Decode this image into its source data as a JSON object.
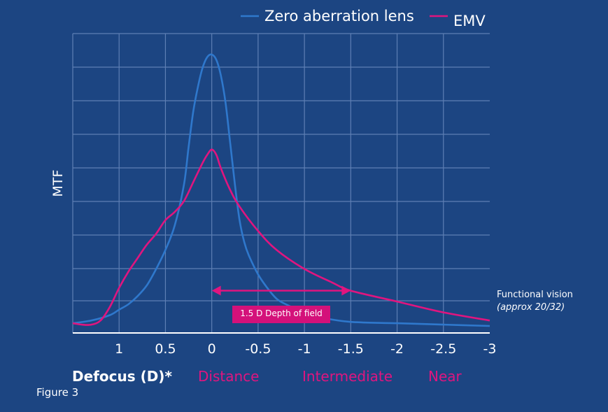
{
  "chart_data": {
    "type": "line",
    "title": "",
    "xlabel": "Defocus (D)*",
    "ylabel": "MTF",
    "xlim": [
      1.5,
      -3
    ],
    "ylim": [
      0,
      1
    ],
    "x_ticks": [
      1,
      0.5,
      0,
      -0.5,
      -1,
      -1.5,
      -2,
      -2.5,
      -3
    ],
    "x_tick_labels": [
      "1",
      "0.5",
      "0",
      "-0.5",
      "-1",
      "-1.5",
      "-2",
      "-2.5",
      "-3"
    ],
    "grid": true,
    "legend_position": "top-right",
    "series": [
      {
        "name": "Zero aberration lens",
        "color": "#2f78cc",
        "x": [
          1.5,
          1.3,
          1.1,
          1.0,
          0.9,
          0.8,
          0.7,
          0.6,
          0.5,
          0.4,
          0.3,
          0.25,
          0.2,
          0.15,
          0.1,
          0.05,
          0,
          -0.05,
          -0.1,
          -0.15,
          -0.2,
          -0.25,
          -0.3,
          -0.35,
          -0.4,
          -0.5,
          -0.6,
          -0.7,
          -0.8,
          -1.0,
          -1.2,
          -1.5,
          -2.0,
          -2.5,
          -3.0
        ],
        "y": [
          0.01,
          0.02,
          0.04,
          0.06,
          0.08,
          0.11,
          0.15,
          0.21,
          0.28,
          0.37,
          0.52,
          0.66,
          0.79,
          0.88,
          0.95,
          0.99,
          1.0,
          0.98,
          0.92,
          0.82,
          0.67,
          0.52,
          0.39,
          0.31,
          0.26,
          0.19,
          0.14,
          0.1,
          0.08,
          0.05,
          0.03,
          0.015,
          0.01,
          0.005,
          0.0
        ]
      },
      {
        "name": "EMV",
        "color": "#e0157f",
        "x": [
          1.5,
          1.4,
          1.3,
          1.2,
          1.1,
          1.0,
          0.9,
          0.8,
          0.7,
          0.6,
          0.5,
          0.4,
          0.3,
          0.2,
          0.1,
          0.05,
          0,
          -0.05,
          -0.1,
          -0.2,
          -0.3,
          -0.5,
          -0.7,
          -1.0,
          -1.3,
          -1.5,
          -2.0,
          -2.5,
          -3.0
        ],
        "y": [
          0.01,
          0.005,
          0.005,
          0.02,
          0.07,
          0.14,
          0.2,
          0.25,
          0.3,
          0.34,
          0.39,
          0.42,
          0.46,
          0.53,
          0.6,
          0.63,
          0.65,
          0.63,
          0.58,
          0.5,
          0.44,
          0.35,
          0.28,
          0.21,
          0.16,
          0.13,
          0.09,
          0.05,
          0.02
        ]
      }
    ],
    "annotations": {
      "depth_of_field": {
        "label": "1.5 D Depth of field",
        "from": 0,
        "to": -1.5,
        "mtf": 0.13
      },
      "functional_vision_line1": "Functional vision",
      "functional_vision_line2": "(approx 20/32)"
    },
    "region_labels": [
      "Distance",
      "Intermediate",
      "Near"
    ],
    "figure_label": "Figure 3"
  }
}
